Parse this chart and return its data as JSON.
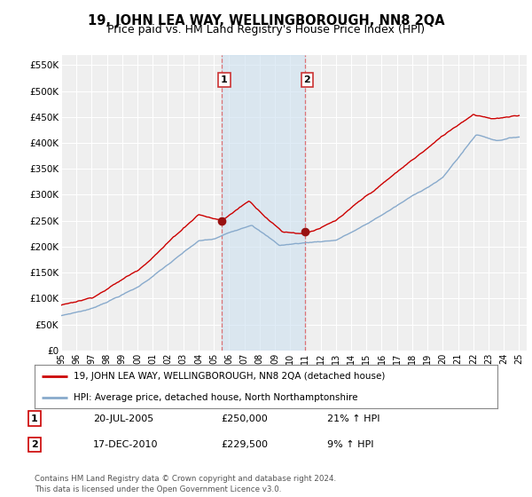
{
  "title": "19, JOHN LEA WAY, WELLINGBOROUGH, NN8 2QA",
  "subtitle": "Price paid vs. HM Land Registry's House Price Index (HPI)",
  "ylabel_ticks": [
    "£0",
    "£50K",
    "£100K",
    "£150K",
    "£200K",
    "£250K",
    "£300K",
    "£350K",
    "£400K",
    "£450K",
    "£500K",
    "£550K"
  ],
  "ytick_vals": [
    0,
    50000,
    100000,
    150000,
    200000,
    250000,
    300000,
    350000,
    400000,
    450000,
    500000,
    550000
  ],
  "ylim": [
    0,
    570000
  ],
  "xlim_start": 1995.0,
  "xlim_end": 2025.5,
  "bg_color": "#ffffff",
  "plot_bg_color": "#efefef",
  "grid_color": "#ffffff",
  "red_line_color": "#cc0000",
  "blue_line_color": "#88aacc",
  "sale1_x": 2005.54,
  "sale1_y": 250000,
  "sale1_label": "1",
  "sale1_date": "20-JUL-2005",
  "sale1_price": "£250,000",
  "sale1_hpi": "21% ↑ HPI",
  "sale2_x": 2010.96,
  "sale2_y": 229500,
  "sale2_label": "2",
  "sale2_date": "17-DEC-2010",
  "sale2_price": "£229,500",
  "sale2_hpi": "9% ↑ HPI",
  "legend_line1": "19, JOHN LEA WAY, WELLINGBOROUGH, NN8 2QA (detached house)",
  "legend_line2": "HPI: Average price, detached house, North Northamptonshire",
  "footnote": "Contains HM Land Registry data © Crown copyright and database right 2024.\nThis data is licensed under the Open Government Licence v3.0.",
  "title_fontsize": 10.5,
  "subtitle_fontsize": 9
}
